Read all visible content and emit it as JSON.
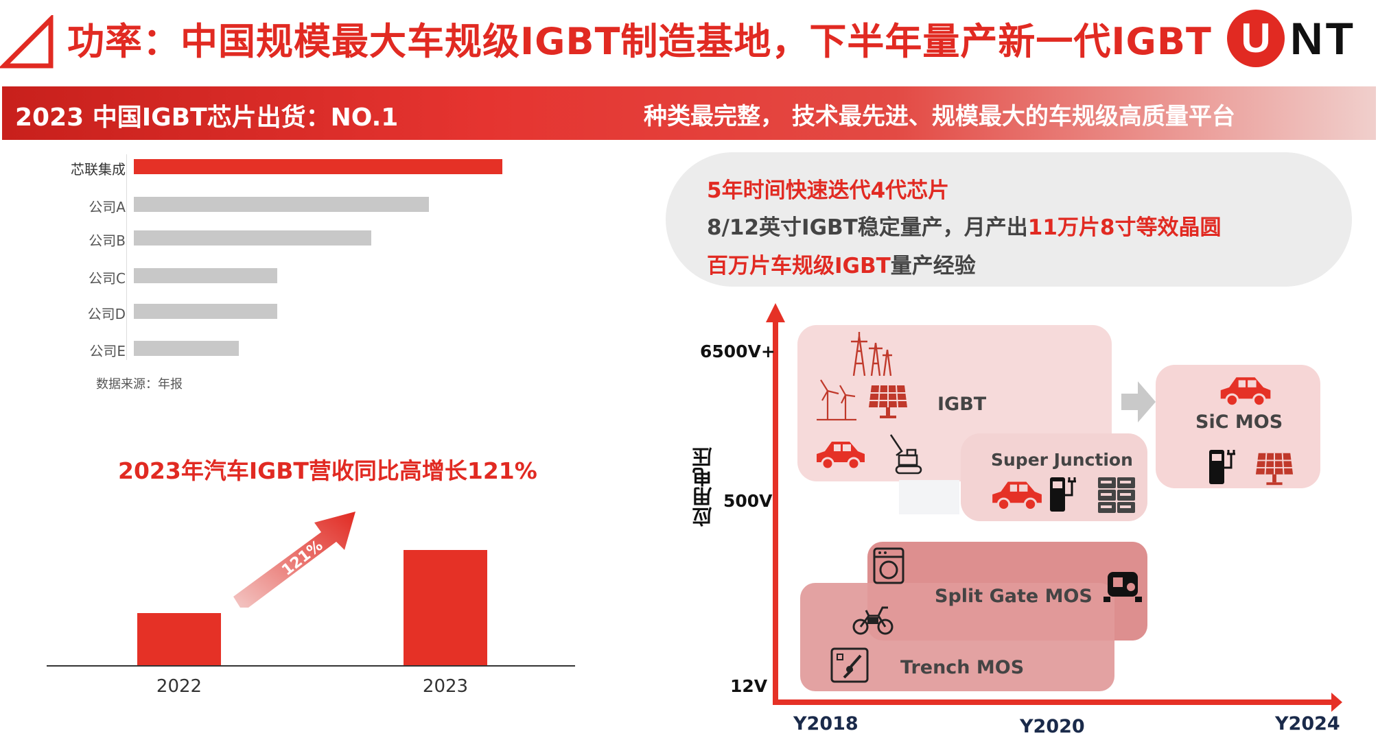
{
  "header": {
    "title": "功率：中国规模最大车规级IGBT制造基地，下半年量产新一代IGBT",
    "logo_u": "U",
    "logo_nt": "NT"
  },
  "banner": {
    "left_text": "2023 中国IGBT芯片出货：NO.1",
    "right_text": "种类最完整， 技术最先进、规模最大的车规级高质量平台"
  },
  "ranking": {
    "items": [
      {
        "label": "芯联集成",
        "value": 1.0,
        "highlight": true
      },
      {
        "label": "公司A",
        "value": 0.8,
        "highlight": false
      },
      {
        "label": "公司B",
        "value": 0.645,
        "highlight": false
      },
      {
        "label": "公司C",
        "value": 0.39,
        "highlight": false
      },
      {
        "label": "公司D",
        "value": 0.39,
        "highlight": false
      },
      {
        "label": "公司E",
        "value": 0.285,
        "highlight": false
      }
    ],
    "source": "数据来源：年报",
    "colors": {
      "highlight": "#e53126",
      "normal": "#c8c8c8"
    }
  },
  "growth": {
    "title": "2023年汽车IGBT营收同比高增长121%",
    "arrow_label": "121%",
    "years": [
      "2022",
      "2023"
    ],
    "values": [
      1.0,
      2.21
    ]
  },
  "info": {
    "line1": "5年时间快速迭代4代芯片",
    "line2_a": "8/12英寸IGBT稳定量产，月产出",
    "line2_b": "11万片8寸等效晶圆",
    "line3_a": "百万片车规级IGBT",
    "line3_b": "量产经验"
  },
  "tech_map": {
    "y_axis_title": "应用电压",
    "voltages": [
      "6500V+",
      "500V",
      "12V"
    ],
    "years": [
      "Y2018",
      "Y2020",
      "Y2024"
    ],
    "regions": {
      "igbt": "IGBT",
      "super_junction": "Super Junction",
      "sic": "SiC MOS",
      "split_gate": "Split Gate MOS",
      "trench": "Trench MOS"
    }
  }
}
